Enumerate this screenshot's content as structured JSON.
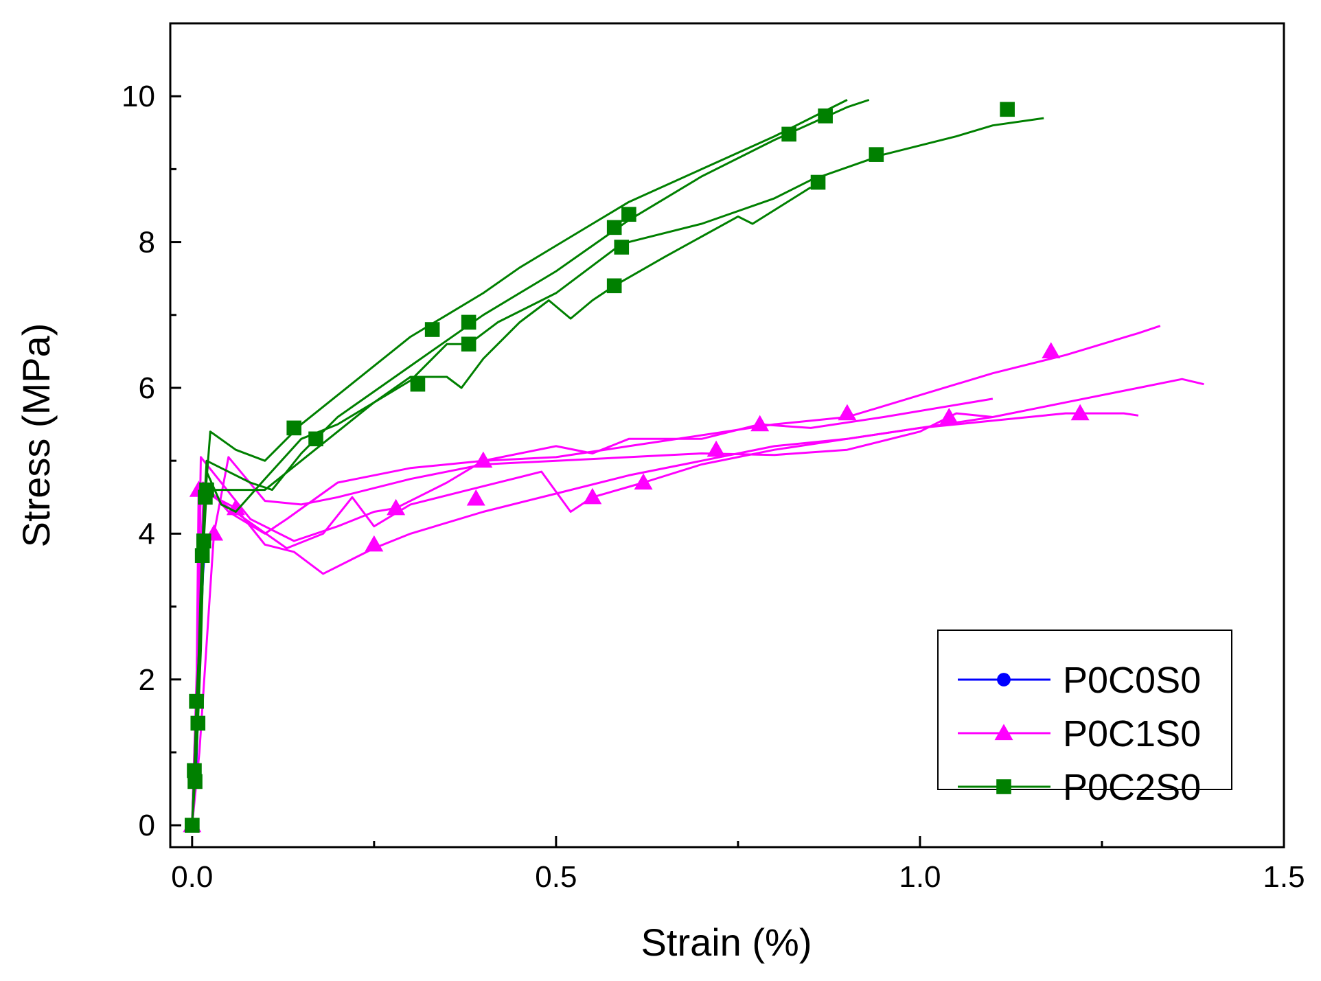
{
  "chart_data": {
    "type": "line",
    "title": "",
    "xlabel": "Strain (%)",
    "ylabel": "Stress (MPa)",
    "xlim": [
      -0.03,
      1.5
    ],
    "ylim": [
      -0.3,
      11
    ],
    "x_ticks": [
      0.0,
      0.5,
      1.0,
      1.5
    ],
    "x_tick_labels": [
      "0.0",
      "0.5",
      "1.0",
      "1.5"
    ],
    "y_ticks": [
      0,
      2,
      4,
      6,
      8,
      10
    ],
    "y_tick_labels": [
      "0",
      "2",
      "4",
      "6",
      "8",
      "10"
    ],
    "grid": false,
    "legend_position": "bottom-right",
    "legend": [
      {
        "name": "P0C0S0",
        "color": "#0000ff",
        "marker": "circle"
      },
      {
        "name": "P0C1S0",
        "color": "#ff00ff",
        "marker": "triangle"
      },
      {
        "name": "P0C2S0",
        "color": "#008000",
        "marker": "square"
      }
    ],
    "series": [
      {
        "name": "P0C0S0",
        "color": "#0000ff",
        "marker": "circle",
        "x": [
          0.0,
          0.003,
          0.006,
          0.009,
          0.012,
          0.015,
          0.018
        ],
        "y": [
          0.0,
          0.35,
          0.9,
          1.75,
          2.65,
          3.45,
          3.85
        ]
      },
      {
        "name": "P0C1S0",
        "color": "#ff00ff",
        "marker": "triangle",
        "x": [
          0.0,
          0.003,
          0.006,
          0.009,
          0.015,
          0.05,
          0.1,
          0.13,
          0.2,
          0.3,
          0.4,
          0.5,
          0.55,
          0.6,
          0.7,
          0.78,
          0.85,
          0.95,
          1.1
        ],
        "y": [
          0.0,
          1.0,
          1.8,
          4.6,
          4.7,
          4.3,
          4.0,
          4.2,
          4.7,
          4.9,
          5.0,
          5.2,
          5.1,
          5.3,
          5.3,
          5.5,
          5.45,
          5.6,
          5.85
        ],
        "markers_x": [
          0.0,
          0.009,
          0.78,
          0.9
        ],
        "markers_y": [
          0.0,
          4.6,
          5.5,
          5.65
        ]
      },
      {
        "name": "P0C1S0",
        "color": "#ff00ff",
        "marker": "triangle",
        "x": [
          0.0,
          0.004,
          0.008,
          0.012,
          0.08,
          0.14,
          0.2,
          0.25,
          0.28,
          0.35,
          0.4,
          0.5,
          0.6,
          0.7,
          0.8,
          0.9,
          1.0,
          1.1,
          1.2,
          1.3,
          1.33
        ],
        "y": [
          0.0,
          1.2,
          2.6,
          5.05,
          4.2,
          3.9,
          4.1,
          4.3,
          4.35,
          4.7,
          5.0,
          5.05,
          5.2,
          5.35,
          5.5,
          5.6,
          5.9,
          6.2,
          6.45,
          6.75,
          6.85
        ],
        "markers_x": [
          0.28,
          0.4,
          1.18
        ],
        "markers_y": [
          4.35,
          5.0,
          6.5
        ]
      },
      {
        "name": "P0C1S0",
        "color": "#ff00ff",
        "marker": "triangle",
        "x": [
          0.0,
          0.005,
          0.01,
          0.016,
          0.08,
          0.13,
          0.18,
          0.22,
          0.25,
          0.3,
          0.38,
          0.48,
          0.52,
          0.55,
          0.62,
          0.7,
          0.8,
          0.9,
          1.0,
          1.1,
          1.2,
          1.28,
          1.3
        ],
        "y": [
          0.0,
          1.5,
          3.2,
          4.6,
          4.15,
          3.8,
          4.0,
          4.5,
          4.1,
          4.4,
          4.6,
          4.85,
          4.3,
          4.5,
          4.7,
          4.95,
          5.15,
          5.3,
          5.45,
          5.55,
          5.65,
          5.65,
          5.62
        ],
        "markers_x": [
          0.55,
          0.62,
          1.04,
          1.22
        ],
        "markers_y": [
          4.5,
          4.7,
          5.6,
          5.65
        ]
      },
      {
        "name": "P0C1S0",
        "color": "#ff00ff",
        "marker": "triangle",
        "x": [
          0.0,
          0.006,
          0.012,
          0.06,
          0.1,
          0.14,
          0.18,
          0.22,
          0.25,
          0.3,
          0.4,
          0.5,
          0.6,
          0.7,
          0.75,
          0.8,
          0.9,
          1.0,
          1.1,
          1.2,
          1.3,
          1.36,
          1.39
        ],
        "y": [
          0.0,
          2.0,
          4.6,
          4.35,
          3.85,
          3.75,
          3.45,
          3.65,
          3.8,
          4.0,
          4.3,
          4.55,
          4.8,
          5.0,
          5.1,
          5.2,
          5.3,
          5.45,
          5.6,
          5.8,
          6.0,
          6.12,
          6.05
        ],
        "markers_x": [
          0.06,
          0.25,
          0.39,
          0.72
        ],
        "markers_y": [
          4.35,
          3.85,
          4.48,
          5.15
        ]
      },
      {
        "name": "P0C1S0",
        "color": "#ff00ff",
        "marker": "triangle",
        "x": [
          0.0,
          0.01,
          0.02,
          0.03,
          0.05,
          0.1,
          0.15,
          0.2,
          0.3,
          0.4,
          0.5,
          0.6,
          0.7,
          0.8,
          0.9,
          1.0,
          1.05,
          1.1
        ],
        "y": [
          0.0,
          1.0,
          2.5,
          4.0,
          5.05,
          4.45,
          4.4,
          4.5,
          4.75,
          4.95,
          5.0,
          5.05,
          5.1,
          5.08,
          5.15,
          5.4,
          5.65,
          5.6
        ],
        "markers_x": [
          0.03
        ],
        "markers_y": [
          4.0
        ]
      },
      {
        "name": "P0C2S0",
        "color": "#008000",
        "marker": "square",
        "x": [
          0.0,
          0.003,
          0.006,
          0.01,
          0.014,
          0.018,
          0.025,
          0.06,
          0.1,
          0.15,
          0.2,
          0.25,
          0.3,
          0.35,
          0.4,
          0.45,
          0.5,
          0.55,
          0.6,
          0.7,
          0.8,
          0.87,
          0.9
        ],
        "y": [
          0.0,
          0.75,
          1.7,
          2.5,
          3.7,
          4.5,
          5.4,
          5.15,
          5.0,
          5.5,
          5.9,
          6.3,
          6.7,
          7.0,
          7.3,
          7.65,
          7.95,
          8.25,
          8.55,
          9.0,
          9.45,
          9.8,
          9.95
        ],
        "markers_x": [
          0.0,
          0.003,
          0.006,
          0.014,
          0.018,
          0.14,
          0.33,
          0.38,
          0.58,
          0.6,
          0.82,
          0.87
        ],
        "markers_y": [
          0.0,
          0.75,
          1.7,
          3.7,
          4.5,
          5.45,
          6.8,
          6.9,
          8.2,
          8.38,
          9.48,
          9.73
        ]
      },
      {
        "name": "P0C2S0",
        "color": "#008000",
        "marker": "square",
        "x": [
          0.0,
          0.004,
          0.008,
          0.012,
          0.016,
          0.02,
          0.04,
          0.08,
          0.11,
          0.15,
          0.2,
          0.3,
          0.4,
          0.5,
          0.6,
          0.7,
          0.8,
          0.9,
          0.93
        ],
        "y": [
          0.0,
          0.9,
          2.0,
          3.3,
          4.3,
          5.0,
          4.9,
          4.7,
          4.6,
          5.1,
          5.6,
          6.3,
          7.0,
          7.6,
          8.3,
          8.9,
          9.4,
          9.85,
          9.95
        ]
      },
      {
        "name": "P0C2S0",
        "color": "#008000",
        "marker": "square",
        "x": [
          0.0,
          0.004,
          0.008,
          0.012,
          0.016,
          0.02,
          0.04,
          0.06,
          0.1,
          0.15,
          0.2,
          0.3,
          0.35,
          0.38,
          0.42,
          0.5,
          0.58,
          0.6,
          0.7,
          0.8,
          0.85,
          0.95,
          1.05,
          1.1,
          1.17
        ],
        "y": [
          0.0,
          0.7,
          1.6,
          2.8,
          4.2,
          4.85,
          4.4,
          4.3,
          4.75,
          5.3,
          5.5,
          6.1,
          6.6,
          6.6,
          6.9,
          7.3,
          7.9,
          8.0,
          8.25,
          8.6,
          8.85,
          9.2,
          9.45,
          9.6,
          9.7
        ],
        "markers_x": [
          0.17,
          0.38,
          0.59,
          0.86,
          0.94,
          1.12
        ],
        "markers_y": [
          5.3,
          6.6,
          7.93,
          8.82,
          9.2,
          9.82
        ]
      },
      {
        "name": "P0C2S0",
        "color": "#008000",
        "marker": "square",
        "x": [
          0.0,
          0.004,
          0.008,
          0.012,
          0.016,
          0.02,
          0.05,
          0.1,
          0.15,
          0.2,
          0.25,
          0.3,
          0.35,
          0.37,
          0.4,
          0.45,
          0.49,
          0.52,
          0.55,
          0.58,
          0.65,
          0.75,
          0.77,
          0.85
        ],
        "y": [
          0.0,
          0.6,
          1.4,
          2.4,
          3.9,
          4.6,
          4.6,
          4.6,
          5.0,
          5.4,
          5.8,
          6.15,
          6.15,
          6.0,
          6.4,
          6.9,
          7.2,
          6.95,
          7.2,
          7.4,
          7.8,
          8.35,
          8.25,
          8.75
        ],
        "markers_x": [
          0.0,
          0.004,
          0.008,
          0.016,
          0.02,
          0.31,
          0.58
        ],
        "markers_y": [
          0.0,
          0.6,
          1.4,
          3.9,
          4.6,
          6.05,
          7.4
        ]
      }
    ]
  }
}
